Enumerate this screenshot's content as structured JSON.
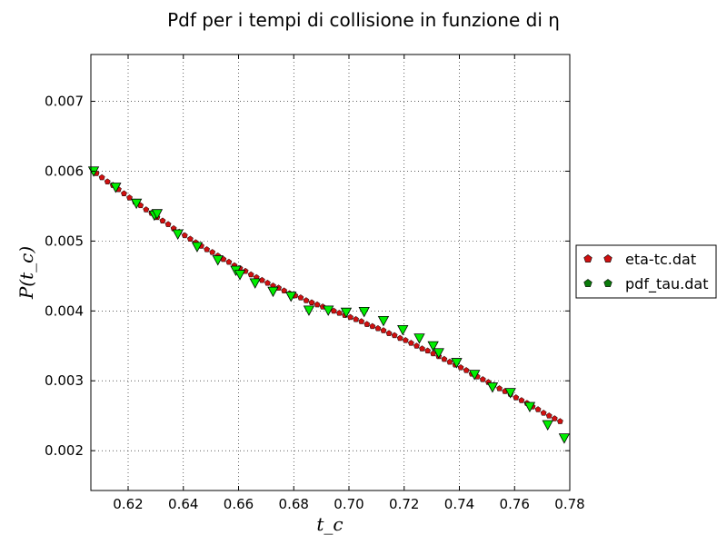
{
  "chart_data": {
    "type": "scatter",
    "title": "Pdf per i tempi di collisione in funzione di η",
    "xlabel": "t_c",
    "ylabel": "P(t_c)",
    "xlim": [
      0.6065,
      0.78
    ],
    "ylim": [
      0.00143,
      0.00767
    ],
    "x_ticks": [
      "0.62",
      "0.64",
      "0.66",
      "0.68",
      "0.70",
      "0.72",
      "0.74",
      "0.76",
      "0.78"
    ],
    "y_ticks": [
      "0.002",
      "0.003",
      "0.004",
      "0.005",
      "0.006",
      "0.007"
    ],
    "grid": true,
    "legend_position": "outside-right",
    "series": [
      {
        "name": "eta-tc.dat",
        "marker": "pentagon",
        "color": "#d01010",
        "x": [
          0.6085,
          0.6105,
          0.6125,
          0.6145,
          0.6165,
          0.6185,
          0.6205,
          0.6225,
          0.6245,
          0.6265,
          0.6285,
          0.6305,
          0.6325,
          0.6345,
          0.6365,
          0.6385,
          0.6405,
          0.6425,
          0.6445,
          0.6465,
          0.6485,
          0.6505,
          0.6525,
          0.6545,
          0.6565,
          0.6585,
          0.6605,
          0.6625,
          0.6645,
          0.6665,
          0.6685,
          0.6705,
          0.6725,
          0.6745,
          0.6765,
          0.6785,
          0.6805,
          0.6825,
          0.6845,
          0.6865,
          0.6885,
          0.6905,
          0.6925,
          0.6945,
          0.6965,
          0.6985,
          0.7005,
          0.7025,
          0.7045,
          0.7065,
          0.7085,
          0.7105,
          0.7125,
          0.7145,
          0.7165,
          0.7185,
          0.7205,
          0.7225,
          0.7245,
          0.7265,
          0.7285,
          0.7305,
          0.7325,
          0.7345,
          0.7365,
          0.7385,
          0.7405,
          0.7425,
          0.7445,
          0.7465,
          0.7485,
          0.7505,
          0.7525,
          0.7545,
          0.7565,
          0.7585,
          0.7605,
          0.7625,
          0.7645,
          0.7665,
          0.7685,
          0.7705,
          0.7725,
          0.7745,
          0.7765
        ],
        "y": [
          0.00597,
          0.00591,
          0.00585,
          0.0058,
          0.00574,
          0.00568,
          0.00562,
          0.00556,
          0.00551,
          0.00545,
          0.0054,
          0.00534,
          0.00529,
          0.00524,
          0.00518,
          0.00513,
          0.00508,
          0.00503,
          0.00498,
          0.00493,
          0.00488,
          0.00484,
          0.00479,
          0.00474,
          0.0047,
          0.00465,
          0.00461,
          0.00457,
          0.00452,
          0.00448,
          0.00444,
          0.0044,
          0.00436,
          0.00433,
          0.00429,
          0.00425,
          0.00422,
          0.00419,
          0.00415,
          0.00412,
          0.00409,
          0.00406,
          0.00403,
          0.004,
          0.00397,
          0.00394,
          0.00391,
          0.00388,
          0.00385,
          0.00381,
          0.00378,
          0.00375,
          0.00372,
          0.00368,
          0.00365,
          0.00361,
          0.00358,
          0.00354,
          0.0035,
          0.00346,
          0.00343,
          0.00339,
          0.00335,
          0.00331,
          0.00327,
          0.00323,
          0.00319,
          0.00315,
          0.0031,
          0.00306,
          0.00302,
          0.00298,
          0.00294,
          0.00289,
          0.00285,
          0.00281,
          0.00276,
          0.00272,
          0.00268,
          0.00263,
          0.00259,
          0.00254,
          0.0025,
          0.00246,
          0.00242
        ]
      },
      {
        "name": "pdf_tau.dat",
        "marker": "triangle-down",
        "color": "#00ee00",
        "x": [
          0.6075,
          0.6155,
          0.623,
          0.6295,
          0.6305,
          0.638,
          0.645,
          0.6525,
          0.659,
          0.6605,
          0.666,
          0.6725,
          0.679,
          0.6855,
          0.6925,
          0.699,
          0.7055,
          0.7125,
          0.7195,
          0.7255,
          0.7305,
          0.7325,
          0.739,
          0.7455,
          0.752,
          0.7585,
          0.7655,
          0.772,
          0.778
        ],
        "y": [
          0.006,
          0.00577,
          0.00554,
          0.00537,
          0.00539,
          0.0051,
          0.00492,
          0.00473,
          0.00458,
          0.00452,
          0.0044,
          0.00428,
          0.00421,
          0.00401,
          0.00401,
          0.00398,
          0.00399,
          0.00386,
          0.00373,
          0.00361,
          0.0035,
          0.0034,
          0.00326,
          0.00309,
          0.00291,
          0.00283,
          0.00263,
          0.00237,
          0.00218
        ]
      }
    ]
  },
  "legend_items": [
    {
      "label": "eta-tc.dat",
      "color": "#d01010"
    },
    {
      "label": "pdf_tau.dat",
      "color": "#0a7a0a"
    }
  ]
}
